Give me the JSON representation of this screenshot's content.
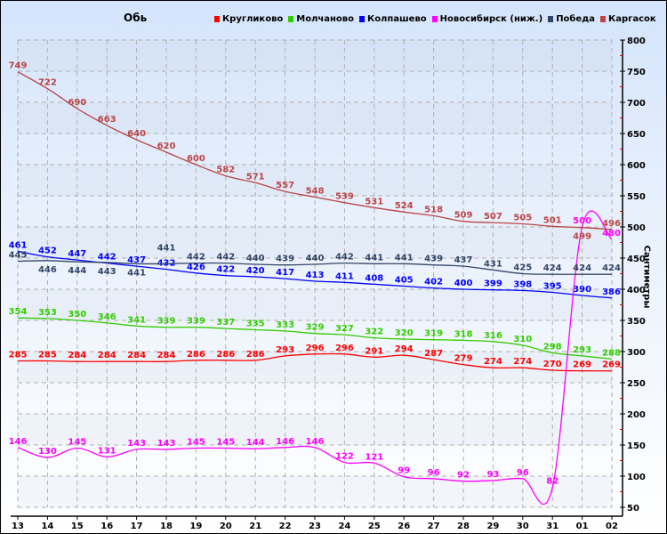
{
  "chart_data": {
    "type": "line",
    "title": "Обь",
    "ylabel": "Сантиметры",
    "xlabel": "",
    "ylim": [
      50,
      800
    ],
    "yticks": [
      50,
      100,
      150,
      200,
      250,
      300,
      350,
      400,
      450,
      500,
      550,
      600,
      650,
      700,
      750,
      800
    ],
    "grid": true,
    "legend_position": "top",
    "categories": [
      "13",
      "14",
      "15",
      "16",
      "17",
      "18",
      "19",
      "20",
      "21",
      "22",
      "23",
      "24",
      "25",
      "26",
      "27",
      "28",
      "29",
      "30",
      "31",
      "01",
      "02"
    ],
    "series": [
      {
        "name": "Кругликово",
        "color": "#ff0000",
        "values": [
          285,
          285,
          284,
          284,
          284,
          284,
          286,
          286,
          286,
          293,
          296,
          296,
          291,
          294,
          287,
          279,
          274,
          274,
          270,
          269,
          269
        ]
      },
      {
        "name": "Молчаново",
        "color": "#33cc00",
        "values": [
          354,
          353,
          350,
          346,
          341,
          339,
          339,
          337,
          335,
          333,
          329,
          327,
          322,
          320,
          319,
          318,
          316,
          310,
          298,
          293,
          288
        ]
      },
      {
        "name": "Колпашево",
        "color": "#0000ff",
        "values": [
          461,
          452,
          447,
          442,
          437,
          432,
          426,
          422,
          420,
          417,
          413,
          411,
          408,
          405,
          402,
          400,
          399,
          398,
          395,
          390,
          386
        ]
      },
      {
        "name": "Новосибирск (ниж.)",
        "color": "#ff00ff",
        "values": [
          146,
          130,
          145,
          131,
          143,
          143,
          145,
          145,
          144,
          146,
          146,
          122,
          121,
          99,
          96,
          92,
          93,
          96,
          82,
          500,
          480
        ]
      },
      {
        "name": "Победа",
        "color": "#334466",
        "values": [
          445,
          446,
          444,
          443,
          441,
          441,
          442,
          442,
          440,
          439,
          440,
          442,
          441,
          441,
          439,
          437,
          431,
          425,
          424,
          424,
          424
        ]
      },
      {
        "name": "Каргасок",
        "color": "#bb4444",
        "values": [
          749,
          722,
          690,
          663,
          640,
          620,
          600,
          582,
          571,
          557,
          548,
          539,
          531,
          524,
          518,
          509,
          507,
          505,
          501,
          499,
          496
        ]
      }
    ]
  }
}
